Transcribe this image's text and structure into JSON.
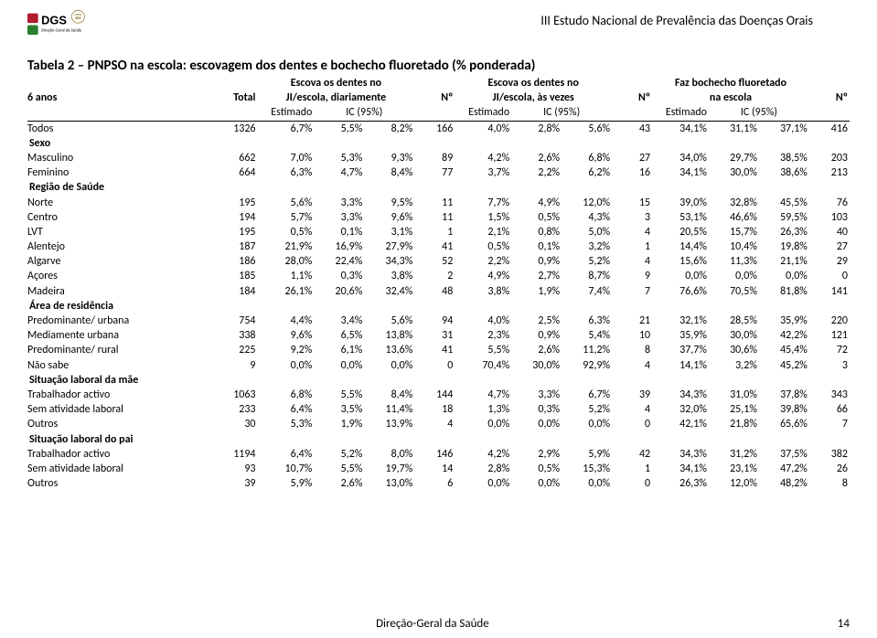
{
  "doc_title": "III Estudo Nacional de Prevalência das Doenças Orais",
  "table_title": "Tabela 2 – PNPSO na escola: escovagem dos dentes e bochecho fluoretado (% ponderada)",
  "logo": {
    "text_top": "DGS",
    "text_bottom": "Direção-Geral da Saúde",
    "badge": "DESDE 1899"
  },
  "header": {
    "row_label": "6 anos",
    "total": "Total",
    "groups": [
      "Escova os dentes no JI/escola, diariamente",
      "Escova os dentes no JI/escola, às vezes",
      "Faz bochecho fluoretado na escola"
    ],
    "n_label": "Nº",
    "est_label": "Estimado",
    "ic_label": "IC (95%)"
  },
  "rows": [
    {
      "label": "Todos",
      "total": "1326",
      "g": [
        [
          "6,7%",
          "5,5%",
          "8,2%",
          "166"
        ],
        [
          "4,0%",
          "2,8%",
          "5,6%",
          "43"
        ],
        [
          "34,1%",
          "31,1%",
          "37,1%",
          "416"
        ]
      ]
    },
    {
      "section": "Sexo"
    },
    {
      "label": "Masculino",
      "total": "662",
      "g": [
        [
          "7,0%",
          "5,3%",
          "9,3%",
          "89"
        ],
        [
          "4,2%",
          "2,6%",
          "6,8%",
          "27"
        ],
        [
          "34,0%",
          "29,7%",
          "38,5%",
          "203"
        ]
      ]
    },
    {
      "label": "Feminino",
      "total": "664",
      "g": [
        [
          "6,3%",
          "4,7%",
          "8,4%",
          "77"
        ],
        [
          "3,7%",
          "2,2%",
          "6,2%",
          "16"
        ],
        [
          "34,1%",
          "30,0%",
          "38,6%",
          "213"
        ]
      ]
    },
    {
      "section": "Região de Saúde"
    },
    {
      "label": "Norte",
      "total": "195",
      "g": [
        [
          "5,6%",
          "3,3%",
          "9,5%",
          "11"
        ],
        [
          "7,7%",
          "4,9%",
          "12,0%",
          "15"
        ],
        [
          "39,0%",
          "32,8%",
          "45,5%",
          "76"
        ]
      ]
    },
    {
      "label": "Centro",
      "total": "194",
      "g": [
        [
          "5,7%",
          "3,3%",
          "9,6%",
          "11"
        ],
        [
          "1,5%",
          "0,5%",
          "4,3%",
          "3"
        ],
        [
          "53,1%",
          "46,6%",
          "59,5%",
          "103"
        ]
      ]
    },
    {
      "label": "LVT",
      "total": "195",
      "g": [
        [
          "0,5%",
          "0,1%",
          "3,1%",
          "1"
        ],
        [
          "2,1%",
          "0,8%",
          "5,0%",
          "4"
        ],
        [
          "20,5%",
          "15,7%",
          "26,3%",
          "40"
        ]
      ]
    },
    {
      "label": "Alentejo",
      "total": "187",
      "g": [
        [
          "21,9%",
          "16,9%",
          "27,9%",
          "41"
        ],
        [
          "0,5%",
          "0,1%",
          "3,2%",
          "1"
        ],
        [
          "14,4%",
          "10,4%",
          "19,8%",
          "27"
        ]
      ]
    },
    {
      "label": "Algarve",
      "total": "186",
      "g": [
        [
          "28,0%",
          "22,4%",
          "34,3%",
          "52"
        ],
        [
          "2,2%",
          "0,9%",
          "5,2%",
          "4"
        ],
        [
          "15,6%",
          "11,3%",
          "21,1%",
          "29"
        ]
      ]
    },
    {
      "label": "Açores",
      "total": "185",
      "g": [
        [
          "1,1%",
          "0,3%",
          "3,8%",
          "2"
        ],
        [
          "4,9%",
          "2,7%",
          "8,7%",
          "9"
        ],
        [
          "0,0%",
          "0,0%",
          "0,0%",
          "0"
        ]
      ]
    },
    {
      "label": "Madeira",
      "total": "184",
      "g": [
        [
          "26,1%",
          "20,6%",
          "32,4%",
          "48"
        ],
        [
          "3,8%",
          "1,9%",
          "7,4%",
          "7"
        ],
        [
          "76,6%",
          "70,5%",
          "81,8%",
          "141"
        ]
      ]
    },
    {
      "section": "Área de residência"
    },
    {
      "label": "Predominante/ urbana",
      "total": "754",
      "g": [
        [
          "4,4%",
          "3,4%",
          "5,6%",
          "94"
        ],
        [
          "4,0%",
          "2,5%",
          "6,3%",
          "21"
        ],
        [
          "32,1%",
          "28,5%",
          "35,9%",
          "220"
        ]
      ]
    },
    {
      "label": "Mediamente urbana",
      "total": "338",
      "g": [
        [
          "9,6%",
          "6,5%",
          "13,8%",
          "31"
        ],
        [
          "2,3%",
          "0,9%",
          "5,4%",
          "10"
        ],
        [
          "35,9%",
          "30,0%",
          "42,2%",
          "121"
        ]
      ]
    },
    {
      "label": "Predominante/ rural",
      "total": "225",
      "g": [
        [
          "9,2%",
          "6,1%",
          "13,6%",
          "41"
        ],
        [
          "5,5%",
          "2,6%",
          "11,2%",
          "8"
        ],
        [
          "37,7%",
          "30,6%",
          "45,4%",
          "72"
        ]
      ]
    },
    {
      "label": "Não sabe",
      "total": "9",
      "g": [
        [
          "0,0%",
          "0,0%",
          "0,0%",
          "0"
        ],
        [
          "70,4%",
          "30,0%",
          "92,9%",
          "4"
        ],
        [
          "14,1%",
          "3,2%",
          "45,2%",
          "3"
        ]
      ]
    },
    {
      "section": "Situação laboral da mãe"
    },
    {
      "label": "Trabalhador activo",
      "total": "1063",
      "g": [
        [
          "6,8%",
          "5,5%",
          "8,4%",
          "144"
        ],
        [
          "4,7%",
          "3,3%",
          "6,7%",
          "39"
        ],
        [
          "34,3%",
          "31,0%",
          "37,8%",
          "343"
        ]
      ]
    },
    {
      "label": "Sem atividade laboral",
      "total": "233",
      "g": [
        [
          "6,4%",
          "3,5%",
          "11,4%",
          "18"
        ],
        [
          "1,3%",
          "0,3%",
          "5,2%",
          "4"
        ],
        [
          "32,0%",
          "25,1%",
          "39,8%",
          "66"
        ]
      ]
    },
    {
      "label": "Outros",
      "total": "30",
      "g": [
        [
          "5,3%",
          "1,9%",
          "13,9%",
          "4"
        ],
        [
          "0,0%",
          "0,0%",
          "0,0%",
          "0"
        ],
        [
          "42,1%",
          "21,8%",
          "65,6%",
          "7"
        ]
      ]
    },
    {
      "section": "Situação laboral do pai"
    },
    {
      "label": "Trabalhador activo",
      "total": "1194",
      "g": [
        [
          "6,4%",
          "5,2%",
          "8,0%",
          "146"
        ],
        [
          "4,2%",
          "2,9%",
          "5,9%",
          "42"
        ],
        [
          "34,3%",
          "31,2%",
          "37,5%",
          "382"
        ]
      ]
    },
    {
      "label": "Sem atividade laboral",
      "total": "93",
      "g": [
        [
          "10,7%",
          "5,5%",
          "19,7%",
          "14"
        ],
        [
          "2,8%",
          "0,5%",
          "15,3%",
          "1"
        ],
        [
          "34,1%",
          "23,1%",
          "47,2%",
          "26"
        ]
      ]
    },
    {
      "label": "Outros",
      "total": "39",
      "g": [
        [
          "5,9%",
          "2,6%",
          "13,0%",
          "6"
        ],
        [
          "0,0%",
          "0,0%",
          "0,0%",
          "0"
        ],
        [
          "26,3%",
          "12,0%",
          "48,2%",
          "8"
        ]
      ]
    }
  ],
  "footer": {
    "center": "Direção-Geral da Saúde",
    "page": "14"
  }
}
